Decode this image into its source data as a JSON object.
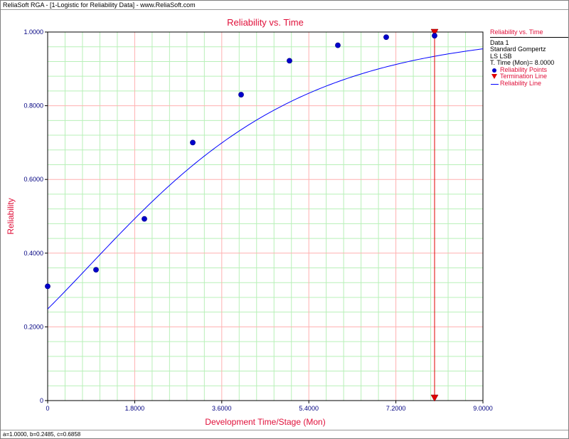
{
  "window": {
    "title": "ReliaSoft RGA - [1-Logistic for Reliability Data] - www.ReliaSoft.com"
  },
  "footer": {
    "text": "a=1.0000, b=0.2485, c=0.6858"
  },
  "legend": {
    "title": "Reliability vs. Time",
    "lines": [
      "Data 1",
      "Standard Gompertz",
      "LS LSB",
      "T. Time (Mon)= 8.0000"
    ],
    "items": [
      {
        "label": "Reliability Points",
        "symbol": "dot"
      },
      {
        "label": "Termination Line",
        "symbol": "triangle"
      },
      {
        "label": "Reliability Line",
        "symbol": "line"
      }
    ]
  },
  "colors": {
    "title": "#e0103a",
    "tick_label": "#000080",
    "points": "#0000cc",
    "curve": "#0000ff",
    "termination": "#e00000",
    "major_grid": "#ffb0b0",
    "minor_grid": "#b8f0b8"
  },
  "chart_data": {
    "type": "scatter",
    "title": "Reliability vs. Time",
    "xlabel": "Development Time/Stage (Mon)",
    "ylabel": "Reliability",
    "xlim": [
      0,
      9
    ],
    "ylim": [
      0,
      1
    ],
    "xticks": [
      "0",
      "1.8000",
      "3.6000",
      "5.4000",
      "7.2000",
      "9.0000"
    ],
    "yticks": [
      "0",
      "0.2000",
      "0.4000",
      "0.6000",
      "0.8000",
      "1.0000"
    ],
    "grid": true,
    "legend_position": "right",
    "series": [
      {
        "name": "Reliability Points",
        "type": "scatter",
        "x": [
          0,
          1,
          2,
          3,
          4,
          5,
          6,
          7,
          8
        ],
        "y": [
          0.31,
          0.355,
          0.493,
          0.7,
          0.83,
          0.922,
          0.964,
          0.986,
          0.99
        ]
      },
      {
        "name": "Reliability Line",
        "type": "line",
        "model": "Standard Gompertz",
        "a": 1.0,
        "b": 0.2485,
        "c": 0.6858,
        "x_range": [
          0,
          9
        ]
      },
      {
        "name": "Termination Line",
        "type": "vline",
        "x": 8
      }
    ]
  }
}
